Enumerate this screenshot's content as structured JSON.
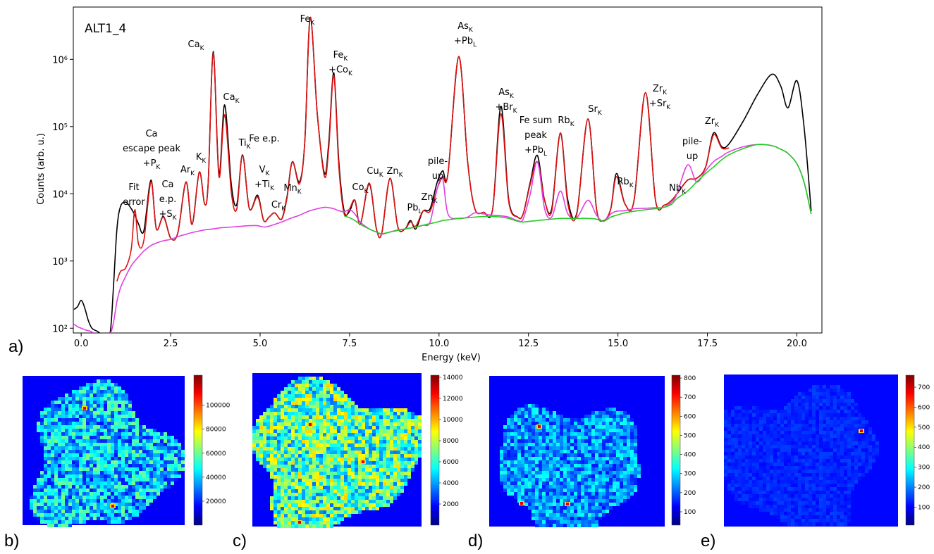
{
  "chart_data": [
    {
      "type": "line",
      "title": "ALT1_4",
      "panel_label": "a)",
      "xlabel": "Energy (keV)",
      "ylabel": "Counts  (arb. u.)",
      "log_y": true,
      "xlim": [
        -0.22,
        20.7
      ],
      "ylim": [
        85,
        6000000
      ],
      "xticks": [
        {
          "value": 0,
          "label": "0.0"
        },
        2.5,
        {
          "value": 5,
          "label": "5.0"
        },
        7.5,
        {
          "value": 10,
          "label": "10.0"
        },
        12.5,
        {
          "value": 15,
          "label": "15.0"
        },
        17.5,
        {
          "value": 20,
          "label": "20.0"
        }
      ],
      "yticks": [
        {
          "value": 100,
          "label": "10²"
        },
        {
          "value": 1000,
          "label": "10³"
        },
        {
          "value": 10000,
          "label": "10⁴"
        },
        {
          "value": 100000,
          "label": "10⁵"
        },
        {
          "value": 1000000,
          "label": "10⁶"
        }
      ],
      "x": [
        -0.2,
        -0.1,
        0.0,
        0.1,
        0.2,
        0.3,
        0.45,
        0.6,
        0.8,
        0.9,
        1.0,
        1.1,
        1.25,
        1.4,
        1.5,
        1.6,
        1.75,
        1.95,
        2.1,
        2.3,
        2.5,
        2.7,
        2.93,
        3.1,
        3.3,
        3.45,
        3.55,
        3.69,
        3.85,
        4.01,
        4.2,
        4.35,
        4.51,
        4.7,
        4.93,
        5.1,
        5.25,
        5.41,
        5.6,
        5.75,
        5.9,
        6.1,
        6.25,
        6.4,
        6.6,
        6.8,
        6.92,
        7.06,
        7.2,
        7.35,
        7.5,
        7.65,
        7.8,
        8.05,
        8.25,
        8.4,
        8.63,
        8.85,
        9.05,
        9.2,
        9.35,
        9.55,
        9.75,
        9.95,
        10.1,
        10.25,
        10.55,
        10.8,
        11.0,
        11.25,
        11.5,
        11.73,
        11.95,
        12.2,
        12.35,
        12.55,
        12.75,
        12.95,
        13.15,
        13.39,
        13.6,
        13.85,
        14.16,
        14.4,
        14.6,
        14.8,
        14.96,
        15.2,
        15.45,
        15.77,
        16.05,
        16.3,
        16.5,
        16.65,
        16.95,
        17.2,
        17.45,
        17.67,
        17.9,
        18.1,
        18.5,
        18.9,
        19.3,
        19.55,
        19.75,
        20.0,
        20.2,
        20.4
      ],
      "series": [
        {
          "color": "#000000",
          "values": [
            190,
            210,
            260,
            200,
            130,
            100,
            90,
            80,
            80,
            400,
            3000,
            6500,
            7500,
            6000,
            4800,
            3600,
            2800,
            16000,
            3000,
            4600,
            2200,
            2600,
            15000,
            3500,
            21000,
            7000,
            15000,
            1300000,
            20000,
            210000,
            13000,
            7000,
            38000,
            6000,
            9500,
            4000,
            4500,
            5200,
            4200,
            9000,
            30000,
            15000,
            60000,
            4200000,
            150000,
            20000,
            60000,
            630000,
            30000,
            5500,
            5500,
            8000,
            3500,
            14000,
            3000,
            2600,
            17000,
            3200,
            3000,
            4000,
            3000,
            5500,
            6000,
            15000,
            22000,
            20000,
            1100000,
            30000,
            6000,
            5300,
            6000,
            200000,
            8000,
            4500,
            5000,
            15000,
            37000,
            8000,
            6000,
            80000,
            8000,
            5200,
            130000,
            6000,
            4000,
            6000,
            20000,
            7000,
            8000,
            320000,
            8000,
            6800,
            8000,
            10000,
            16000,
            17000,
            25000,
            80000,
            50000,
            55000,
            120000,
            300000,
            600000,
            400000,
            190000,
            480000,
            100000,
            5500
          ]
        },
        {
          "color": "#dd1111",
          "values": [
            null,
            null,
            null,
            null,
            null,
            null,
            null,
            null,
            null,
            null,
            500,
            700,
            800,
            1500,
            5800,
            1800,
            2000,
            15000,
            3000,
            4500,
            2200,
            2600,
            15000,
            3500,
            21000,
            7000,
            15000,
            1250000,
            18000,
            150000,
            10000,
            6000,
            38000,
            6000,
            9000,
            4000,
            4500,
            5200,
            4200,
            8500,
            30000,
            14000,
            60000,
            4200000,
            150000,
            18000,
            50000,
            580000,
            25000,
            5000,
            6000,
            8000,
            3500,
            14500,
            3000,
            2600,
            17000,
            3200,
            3000,
            3800,
            3300,
            5500,
            5500,
            12000,
            18000,
            20000,
            1100000,
            30000,
            6000,
            5300,
            6000,
            155000,
            7500,
            4500,
            5000,
            14000,
            30000,
            8000,
            5500,
            80000,
            7000,
            5000,
            130000,
            6000,
            4000,
            6000,
            18000,
            7000,
            8000,
            320000,
            8000,
            6800,
            8000,
            10000,
            16000,
            17000,
            25000,
            75000,
            48000,
            48000,
            null,
            null,
            null,
            null,
            null,
            null,
            null,
            null
          ]
        },
        {
          "color": "#e040e0",
          "values": [
            115,
            105,
            100,
            95,
            92,
            88,
            80,
            78,
            82,
            120,
            250,
            400,
            600,
            850,
            1000,
            1150,
            1400,
            1700,
            1850,
            2000,
            2100,
            2300,
            2500,
            2650,
            2800,
            2900,
            2950,
            3000,
            3100,
            3150,
            3200,
            3250,
            3300,
            3350,
            3350,
            3200,
            3300,
            3500,
            3800,
            4100,
            4400,
            4800,
            5200,
            5600,
            6000,
            6300,
            6200,
            6000,
            5600,
            5400,
            5800,
            5000,
            3800,
            3000,
            2700,
            2500,
            2700,
            2900,
            3000,
            3100,
            3200,
            3400,
            3800,
            12000,
            17000,
            5000,
            4300,
            4500,
            5200,
            5000,
            4800,
            4700,
            4500,
            4000,
            4200,
            10000,
            30000,
            6000,
            4500,
            11000,
            5000,
            4400,
            8000,
            4800,
            3900,
            5000,
            5500,
            5600,
            6000,
            6100,
            6200,
            6300,
            7500,
            10000,
            27000,
            15000,
            22000,
            30000,
            36000,
            42000,
            50000,
            54000,
            52000,
            46000,
            40000,
            28000,
            15000,
            5000
          ]
        },
        {
          "color": "#22cc22",
          "values": [
            null,
            null,
            null,
            null,
            null,
            null,
            null,
            null,
            null,
            null,
            null,
            null,
            null,
            null,
            null,
            null,
            null,
            null,
            null,
            null,
            null,
            null,
            null,
            null,
            null,
            null,
            null,
            null,
            null,
            null,
            null,
            null,
            null,
            null,
            null,
            null,
            null,
            null,
            null,
            null,
            null,
            null,
            null,
            null,
            null,
            null,
            null,
            null,
            null,
            4700,
            4400,
            4000,
            3500,
            3000,
            2700,
            2550,
            2700,
            2850,
            3000,
            3100,
            3200,
            3400,
            3600,
            3800,
            4000,
            4100,
            4300,
            4400,
            4500,
            4600,
            4600,
            4500,
            4300,
            3900,
            3800,
            3900,
            4000,
            4100,
            4200,
            4300,
            4300,
            4300,
            4300,
            4200,
            3900,
            4500,
            4800,
            5200,
            5500,
            5800,
            6000,
            6300,
            7000,
            8500,
            11000,
            15000,
            20000,
            25000,
            32000,
            38000,
            47000,
            54000,
            52000,
            46000,
            40000,
            28000,
            15000,
            5000
          ]
        }
      ],
      "annotations": [
        {
          "lines": [
            {
              "text": "Fit"
            },
            {
              "text": "error"
            }
          ]
        },
        {
          "lines": [
            {
              "text": "Ca"
            },
            {
              "text": "escape peak"
            },
            {
              "text": "+P",
              "sub": "K"
            }
          ]
        },
        {
          "lines": [
            {
              "text": "Ca"
            },
            {
              "text": "e.p."
            },
            {
              "text": "+S",
              "sub": "K"
            }
          ]
        },
        {
          "lines": [
            {
              "text": "Ar",
              "sub": "K"
            }
          ]
        },
        {
          "lines": [
            {
              "text": "K",
              "sub": "K"
            }
          ]
        },
        {
          "lines": [
            {
              "text": "Ca",
              "sub": "K"
            }
          ]
        },
        {
          "lines": [
            {
              "text": "Ca",
              "sub": "K"
            }
          ]
        },
        {
          "lines": [
            {
              "text": "Ti",
              "sub": "K"
            }
          ]
        },
        {
          "lines": [
            {
              "text": "Fe e.p."
            }
          ]
        },
        {
          "lines": [
            {
              "text": "V",
              "sub": "K"
            },
            {
              "text": "+Ti",
              "sub": "K"
            }
          ]
        },
        {
          "lines": [
            {
              "text": "Cr",
              "sub": "K"
            }
          ]
        },
        {
          "lines": [
            {
              "text": "Mn",
              "sub": "K"
            }
          ]
        },
        {
          "lines": [
            {
              "text": "Fe",
              "sub": "K"
            }
          ]
        },
        {
          "lines": [
            {
              "text": "Fe",
              "sub": "K"
            },
            {
              "text": "+Co",
              "sub": "K"
            }
          ]
        },
        {
          "lines": [
            {
              "text": "Co",
              "sub": "K"
            }
          ]
        },
        {
          "lines": [
            {
              "text": "Cu",
              "sub": "K"
            }
          ]
        },
        {
          "lines": [
            {
              "text": "Zn",
              "sub": "K"
            }
          ]
        },
        {
          "lines": [
            {
              "text": "Pb",
              "sub": "L"
            }
          ]
        },
        {
          "lines": [
            {
              "text": "Zn",
              "sub": "K"
            }
          ]
        },
        {
          "lines": [
            {
              "text": "pile-"
            },
            {
              "text": "up"
            }
          ]
        },
        {
          "lines": [
            {
              "text": "As",
              "sub": "K"
            },
            {
              "text": "+Pb",
              "sub": "L"
            }
          ]
        },
        {
          "lines": [
            {
              "text": "As",
              "sub": "K"
            },
            {
              "text": "+Br",
              "sub": "K"
            }
          ]
        },
        {
          "lines": [
            {
              "text": "Fe sum"
            },
            {
              "text": "peak"
            },
            {
              "text": "+Pb",
              "sub": "L"
            }
          ]
        },
        {
          "lines": [
            {
              "text": "Rb",
              "sub": "K"
            }
          ]
        },
        {
          "lines": [
            {
              "text": "Sr",
              "sub": "K"
            }
          ]
        },
        {
          "lines": [
            {
              "text": "Rb",
              "sub": "K"
            }
          ]
        },
        {
          "lines": [
            {
              "text": "Zr",
              "sub": "K"
            },
            {
              "text": "+Sr",
              "sub": "K"
            }
          ]
        },
        {
          "lines": [
            {
              "text": "Nb",
              "sub": "K"
            }
          ]
        },
        {
          "lines": [
            {
              "text": "pile-"
            },
            {
              "text": "up"
            }
          ]
        },
        {
          "lines": [
            {
              "text": "Zr",
              "sub": "K"
            }
          ]
        }
      ]
    },
    {
      "type": "heatmap",
      "panel_label": "b)",
      "clim": [
        0,
        125000
      ],
      "cticks": [
        20000,
        40000,
        60000,
        80000,
        100000
      ]
    },
    {
      "type": "heatmap",
      "panel_label": "c)",
      "clim": [
        0,
        14200
      ],
      "cticks": [
        2000,
        4000,
        6000,
        8000,
        10000,
        12000,
        14000
      ]
    },
    {
      "type": "heatmap",
      "panel_label": "d)",
      "clim": [
        30,
        815
      ],
      "cticks": [
        100,
        200,
        300,
        400,
        500,
        600,
        700,
        800
      ]
    },
    {
      "type": "heatmap",
      "panel_label": "e)",
      "clim": [
        10,
        760
      ],
      "cticks": [
        100,
        200,
        300,
        400,
        500,
        600,
        700
      ]
    }
  ]
}
